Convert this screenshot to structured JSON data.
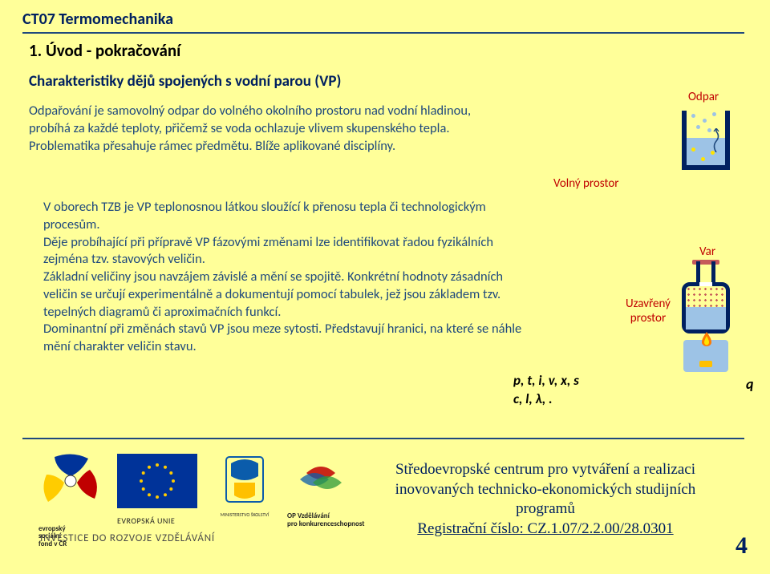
{
  "colors": {
    "slideBg": "#ffff99",
    "darkBlue": "#002060",
    "midBlue": "#1f497d",
    "red": "#c00000",
    "hr": "#1f497d",
    "black": "#000000",
    "liquid": "#9dc3e6",
    "flameOuter": "#ff7a00",
    "flameInner": "#ffe400",
    "euBlue": "#003399",
    "euYellow": "#ffcc00"
  },
  "course": "CT07 Termomechanika",
  "sectionTitle": "1. Úvod - pokračování",
  "subtitle": "Charakteristiky dějů spojených s vodní parou (VP)",
  "para1": "Odpařování je samovolný odpar do volného okolního prostoru nad vodní hladinou, probíhá za každé teploty, přičemž se voda ochlazuje vlivem skupenského tepla. Problematika přesahuje rámec předmětu. Blíže aplikované disciplíny.",
  "labelVolnyProstor": "Volný prostor",
  "para2": "V oborech TZB je VP teplonosnou látkou sloužící k přenosu tepla či technologickým procesům.\nDěje probíhající při přípravě VP fázovými změnami lze identifikovat řadou fyzikálních zejména tzv. stavových veličin.\nZákladní veličiny jsou navzájem závislé a mění se spojitě. Konkrétní hodnoty zásadních veličin se určují experimentálně a dokumentují pomocí tabulek, jež jsou základem tzv. tepelných diagramů či aproximačních funkcí.\nDominantní při změnách stavů VP jsou meze sytosti. Představují hranici, na které se náhle mění charakter veličin stavu.",
  "varsLine1": "p, t, i, v, x, s",
  "varsLine2": "c, l, λ, .",
  "labelOdpar": "Odpar",
  "labelVar": "Var",
  "labelUzavreny1": "Uzavřený",
  "labelUzavreny2": "prostor",
  "qLabel": "q",
  "investText": "INVESTICE DO ROZVOJE VZDĚLÁVÁNÍ",
  "footerCenter": "Středoevropské centrum pro vytváření a realizaci inovovaných technicko-ekonomických studijních programů",
  "regLabel": "Registrační číslo: ",
  "regNum": "CZ.1.07/2.2.00/28.0301",
  "pageNum": "4",
  "logos": {
    "esfTop": "evropský",
    "esfMid": "sociální",
    "esfBot": "fond v ČR",
    "euLabel": "EVROPSKÁ UNIE",
    "msmt": "MŠMT",
    "opTop": "OP Vzdělávání",
    "opBot": "pro konkurenceschopnost"
  }
}
